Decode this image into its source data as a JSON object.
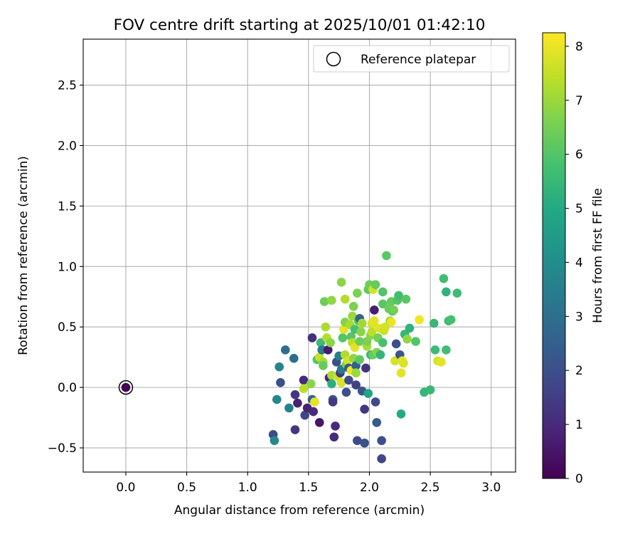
{
  "chart_data": {
    "type": "scatter",
    "title": "FOV centre drift starting at 2025/10/01 01:42:10",
    "xlabel": "Angular distance from reference (arcmin)",
    "ylabel": "Rotation from reference (arcmin)",
    "xlim": [
      -0.35,
      3.2
    ],
    "ylim": [
      -0.7,
      2.88
    ],
    "xticks": [
      0.0,
      0.5,
      1.0,
      1.5,
      2.0,
      2.5,
      3.0
    ],
    "xtick_labels": [
      "0.0",
      "0.5",
      "1.0",
      "1.5",
      "2.0",
      "2.5",
      "3.0"
    ],
    "yticks": [
      -0.5,
      0.0,
      0.5,
      1.0,
      1.5,
      2.0,
      2.5
    ],
    "ytick_labels": [
      "−0.5",
      "0.0",
      "0.5",
      "1.0",
      "1.5",
      "2.0",
      "2.5"
    ],
    "grid": true,
    "legend": {
      "position": "top-right",
      "entries": [
        "Reference platepar"
      ]
    },
    "colorbar": {
      "label": "Hours from first FF file",
      "range": [
        0,
        8.25
      ],
      "ticks": [
        0,
        1,
        2,
        3,
        4,
        5,
        6,
        7,
        8
      ],
      "tick_labels": [
        "0",
        "1",
        "2",
        "3",
        "4",
        "5",
        "6",
        "7",
        "8"
      ],
      "colormap": "viridis"
    },
    "reference_point": {
      "x": 0.0,
      "y": 0.0,
      "label": "Reference platepar"
    },
    "series": [
      {
        "name": "FOV centre",
        "points": [
          [
            0.0,
            0.0,
            0.05
          ],
          [
            1.21,
            -0.39,
            1.9
          ],
          [
            1.22,
            -0.44,
            3.8
          ],
          [
            1.24,
            -0.1,
            3.8
          ],
          [
            1.26,
            0.17,
            3.7
          ],
          [
            1.27,
            0.04,
            2.0
          ],
          [
            1.31,
            0.31,
            3.0
          ],
          [
            1.34,
            -0.17,
            3.6
          ],
          [
            1.38,
            0.24,
            3.0
          ],
          [
            1.39,
            -0.06,
            1.3
          ],
          [
            1.39,
            -0.35,
            1.3
          ],
          [
            1.41,
            -0.13,
            0.8
          ],
          [
            1.46,
            0.06,
            1.0
          ],
          [
            1.46,
            -0.01,
            7.4
          ],
          [
            1.47,
            -0.23,
            1.8
          ],
          [
            1.49,
            -0.17,
            0.8
          ],
          [
            1.52,
            0.03,
            6.8
          ],
          [
            1.53,
            0.41,
            1.1
          ],
          [
            1.53,
            -0.1,
            2.6
          ],
          [
            1.54,
            -0.2,
            1.0
          ],
          [
            1.55,
            -0.12,
            7.9
          ],
          [
            1.57,
            0.23,
            6.0
          ],
          [
            1.59,
            0.25,
            7.6
          ],
          [
            1.59,
            -0.29,
            0.5
          ],
          [
            1.6,
            0.37,
            5.6
          ],
          [
            1.61,
            0.31,
            3.3
          ],
          [
            1.62,
            0.21,
            7.1
          ],
          [
            1.62,
            0.18,
            6.3
          ],
          [
            1.63,
            0.71,
            6.4
          ],
          [
            1.64,
            0.5,
            7.2
          ],
          [
            1.65,
            0.41,
            7.3
          ],
          [
            1.66,
            0.31,
            0.6
          ],
          [
            1.67,
            0.08,
            0.9
          ],
          [
            1.68,
            0.37,
            6.8
          ],
          [
            1.69,
            0.72,
            6.9
          ],
          [
            1.69,
            0.1,
            7.2
          ],
          [
            1.69,
            0.03,
            5.2
          ],
          [
            1.7,
            -0.1,
            2.2
          ],
          [
            1.7,
            -0.12,
            1.4
          ],
          [
            1.71,
            -0.41,
            1.0
          ],
          [
            1.72,
            -0.32,
            1.0
          ],
          [
            1.73,
            0.21,
            2.0
          ],
          [
            1.74,
            0.09,
            7.6
          ],
          [
            1.75,
            0.26,
            3.6
          ],
          [
            1.76,
            0.12,
            1.4
          ],
          [
            1.77,
            0.15,
            3.3
          ],
          [
            1.77,
            0.04,
            7.8
          ],
          [
            1.77,
            0.87,
            6.8
          ],
          [
            1.78,
            0.41,
            6.0
          ],
          [
            1.79,
            0.48,
            7.9
          ],
          [
            1.8,
            0.27,
            7.3
          ],
          [
            1.8,
            0.73,
            7.3
          ],
          [
            1.8,
            0.54,
            6.7
          ],
          [
            1.81,
            0.19,
            6.5
          ],
          [
            1.81,
            -0.04,
            2.0
          ],
          [
            1.82,
            0.22,
            7.7
          ],
          [
            1.83,
            0.16,
            2.3
          ],
          [
            1.83,
            0.06,
            1.9
          ],
          [
            1.84,
            0.52,
            7.2
          ],
          [
            1.85,
            0.42,
            6.1
          ],
          [
            1.85,
            0.14,
            8.1
          ],
          [
            1.86,
            0.59,
            7.0
          ],
          [
            1.86,
            0.37,
            7.4
          ],
          [
            1.87,
            0.67,
            6.6
          ],
          [
            1.87,
            0.24,
            6.9
          ],
          [
            1.88,
            0.33,
            7.9
          ],
          [
            1.88,
            0.48,
            5.8
          ],
          [
            1.89,
            0.18,
            2.5
          ],
          [
            1.89,
            0.12,
            7.0
          ],
          [
            1.89,
            0.02,
            1.6
          ],
          [
            1.9,
            -0.44,
            1.9
          ],
          [
            1.9,
            0.78,
            6.6
          ],
          [
            1.91,
            0.55,
            6.0
          ],
          [
            1.92,
            0.57,
            2.6
          ],
          [
            1.92,
            0.23,
            6.2
          ],
          [
            1.92,
            0.38,
            6.4
          ],
          [
            1.93,
            0.46,
            6.8
          ],
          [
            1.94,
            0.53,
            7.1
          ],
          [
            1.94,
            -0.03,
            2.2
          ],
          [
            1.96,
            -0.46,
            2.1
          ],
          [
            1.96,
            -0.18,
            1.3
          ],
          [
            1.97,
            0.16,
            1.2
          ],
          [
            1.98,
            0.34,
            7.2
          ],
          [
            1.98,
            0.38,
            6.6
          ],
          [
            1.99,
            0.81,
            6.2
          ],
          [
            1.99,
            -0.05,
            4.8
          ],
          [
            2.0,
            0.85,
            6.4
          ],
          [
            2.01,
            0.43,
            6.8
          ],
          [
            2.01,
            0.27,
            5.6
          ],
          [
            2.02,
            0.46,
            7.4
          ],
          [
            2.02,
            0.53,
            7.8
          ],
          [
            2.03,
            0.81,
            7.7
          ],
          [
            2.03,
            0.27,
            6.3
          ],
          [
            2.04,
            0.64,
            0.7
          ],
          [
            2.04,
            0.55,
            7.9
          ],
          [
            2.05,
            0.85,
            6.3
          ],
          [
            2.05,
            -0.12,
            1.9
          ],
          [
            2.06,
            0.29,
            6.7
          ],
          [
            2.06,
            -0.29,
            2.3
          ],
          [
            2.07,
            0.41,
            6.5
          ],
          [
            2.08,
            0.49,
            7.9
          ],
          [
            2.09,
            0.27,
            5.4
          ],
          [
            2.1,
            -0.44,
            2.0
          ],
          [
            2.1,
            -0.59,
            1.7
          ],
          [
            2.11,
            0.69,
            6.1
          ],
          [
            2.11,
            0.79,
            6.0
          ],
          [
            2.11,
            0.37,
            5.8
          ],
          [
            2.12,
            0.47,
            7.6
          ],
          [
            2.13,
            0.5,
            7.7
          ],
          [
            2.14,
            1.09,
            6.1
          ],
          [
            2.16,
            0.65,
            6.4
          ],
          [
            2.17,
            0.55,
            7.0
          ],
          [
            2.18,
            0.71,
            6.3
          ],
          [
            2.18,
            0.54,
            8.0
          ],
          [
            2.19,
            0.63,
            6.2
          ],
          [
            2.2,
            0.64,
            6.5
          ],
          [
            2.21,
            0.22,
            7.7
          ],
          [
            2.22,
            0.36,
            2.0
          ],
          [
            2.23,
            0.72,
            6.0
          ],
          [
            2.24,
            0.76,
            5.7
          ],
          [
            2.25,
            0.27,
            2.2
          ],
          [
            2.26,
            0.12,
            7.9
          ],
          [
            2.26,
            -0.22,
            5.0
          ],
          [
            2.27,
            0.22,
            7.9
          ],
          [
            2.28,
            0.2,
            7.8
          ],
          [
            2.29,
            0.44,
            5.4
          ],
          [
            2.3,
            0.73,
            6.1
          ],
          [
            2.31,
            0.4,
            6.9
          ],
          [
            2.33,
            0.49,
            5.3
          ],
          [
            2.38,
            0.38,
            6.0
          ],
          [
            2.41,
            0.56,
            8.1
          ],
          [
            2.45,
            -0.04,
            5.4
          ],
          [
            2.5,
            -0.02,
            5.5
          ],
          [
            2.53,
            0.53,
            5.5
          ],
          [
            2.54,
            0.31,
            5.6
          ],
          [
            2.56,
            0.22,
            7.8
          ],
          [
            2.59,
            0.21,
            7.9
          ],
          [
            2.61,
            0.9,
            5.7
          ],
          [
            2.63,
            0.31,
            5.7
          ],
          [
            2.63,
            0.79,
            5.3
          ],
          [
            2.65,
            0.55,
            5.6
          ],
          [
            2.67,
            0.56,
            5.8
          ],
          [
            2.72,
            0.78,
            5.6
          ]
        ]
      }
    ]
  }
}
